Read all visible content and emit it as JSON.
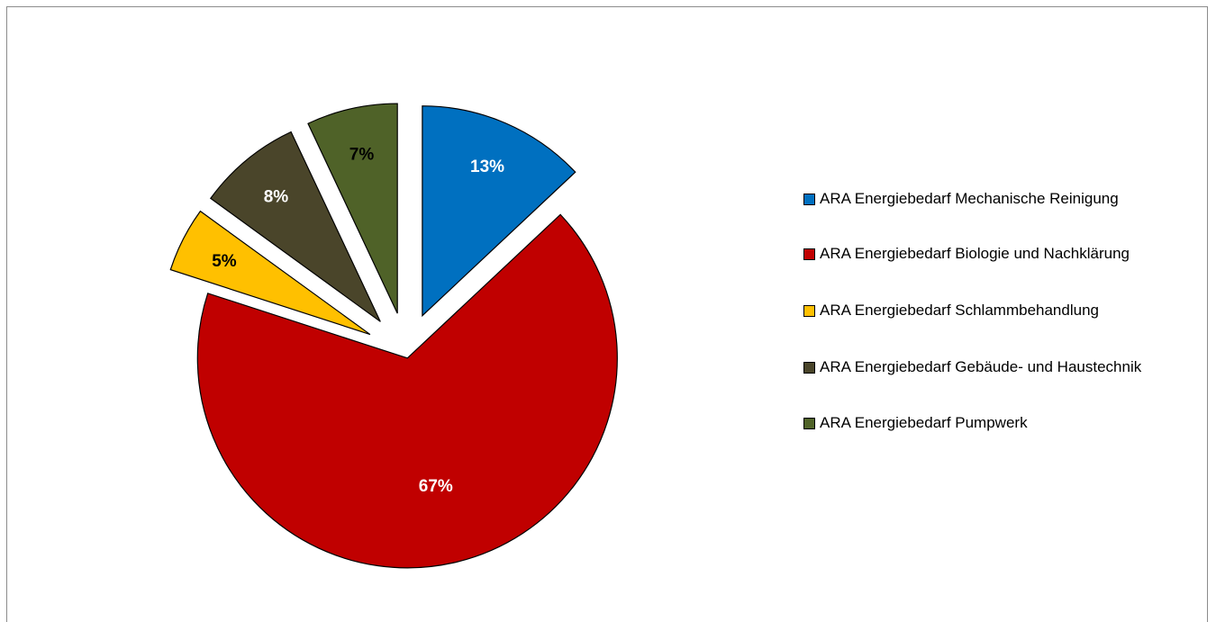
{
  "chart_data": {
    "type": "pie",
    "title": "",
    "series": [
      {
        "name": "ARA Energiebedarf Mechanische Reinigung",
        "value": 13,
        "label": "13%",
        "color": "#0070C0",
        "label_color": "#ffffff"
      },
      {
        "name": "ARA Energiebedarf Biologie und Nachklärung",
        "value": 67,
        "label": "67%",
        "color": "#C00000",
        "label_color": "#ffffff"
      },
      {
        "name": "ARA Energiebedarf Schlammbehandlung",
        "value": 5,
        "label": "5%",
        "color": "#FFC000",
        "label_color": "#000000"
      },
      {
        "name": "ARA Energiebedarf Gebäude- und Haustechnik",
        "value": 8,
        "label": "8%",
        "color": "#4A452A",
        "label_color": "#ffffff"
      },
      {
        "name": "ARA Energiebedarf Pumpwerk",
        "value": 7,
        "label": "7%",
        "color": "#4F6228",
        "label_color": "#000000"
      }
    ],
    "legend_position": "right",
    "exploded": true
  },
  "legend": {
    "items": [
      {
        "text": "ARA Energiebedarf Mechanische Reinigung",
        "color": "#0070C0"
      },
      {
        "text": "ARA Energiebedarf Biologie und Nachklärung",
        "color": "#C00000"
      },
      {
        "text": "ARA Energiebedarf Schlammbehandlung",
        "color": "#FFC000"
      },
      {
        "text": "ARA Energiebedarf Gebäude- und Haustechnik",
        "color": "#4A452A"
      },
      {
        "text": "ARA Energiebedarf Pumpwerk",
        "color": "#4F6228"
      }
    ]
  }
}
